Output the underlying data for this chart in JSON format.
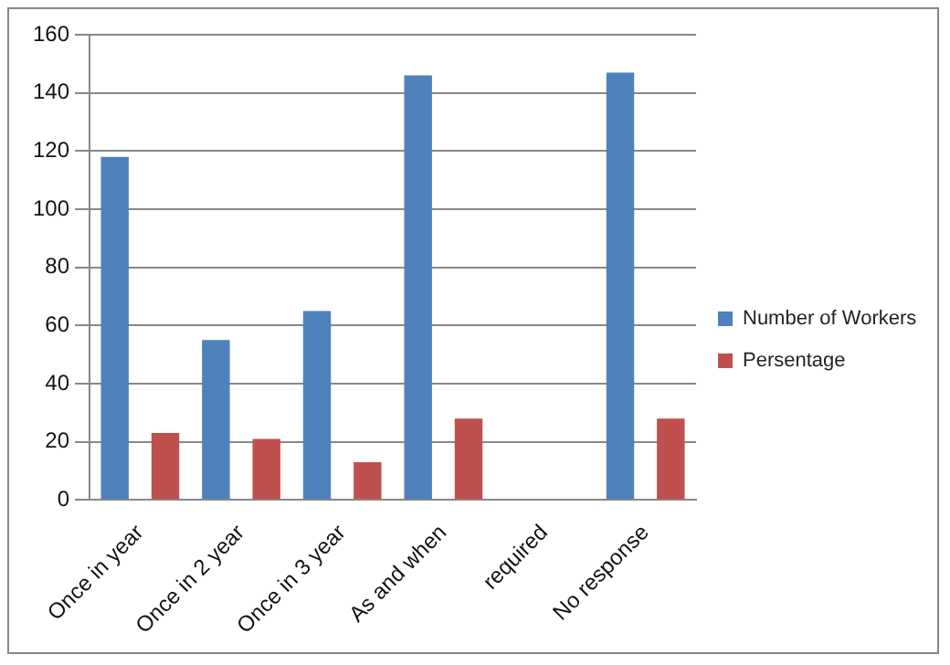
{
  "chart_data": {
    "type": "bar",
    "categories": [
      "Once in year",
      "Once in 2 year",
      "Once in 3 year",
      "As and when",
      "required",
      "No response"
    ],
    "series": [
      {
        "name": "Number of Workers",
        "color": "#4f81bd",
        "values": [
          118,
          55,
          65,
          146,
          null,
          147
        ]
      },
      {
        "name": "Persentage",
        "color": "#c0504d",
        "values": [
          23,
          21,
          13,
          28,
          null,
          28
        ]
      }
    ],
    "ylim": [
      0,
      160
    ],
    "yticks": [
      0,
      20,
      40,
      60,
      80,
      100,
      120,
      140,
      160
    ],
    "grid": "y",
    "legend": "right"
  }
}
